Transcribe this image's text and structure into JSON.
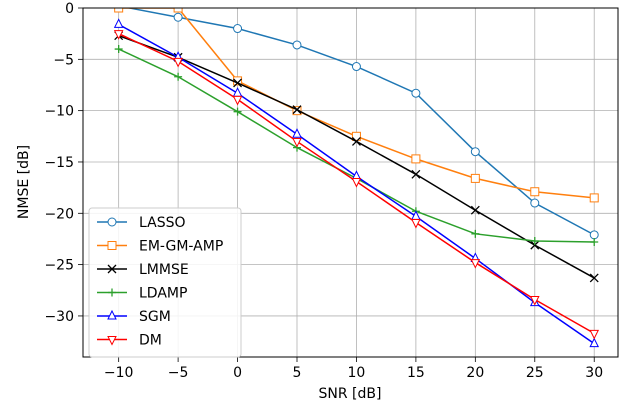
{
  "chart_data": {
    "type": "line",
    "xlabel": "SNR [dB]",
    "ylabel": "NMSE [dB]",
    "xlim": [
      -13,
      32
    ],
    "ylim": [
      -34,
      0
    ],
    "xticks": [
      -10,
      -5,
      0,
      5,
      10,
      15,
      20,
      25,
      30
    ],
    "yticks": [
      0,
      -5,
      -10,
      -15,
      -20,
      -25,
      -30
    ],
    "xtick_labels": [
      "−10",
      "−5",
      "0",
      "5",
      "10",
      "15",
      "20",
      "25",
      "30"
    ],
    "ytick_labels": [
      "0",
      "−5",
      "−10",
      "−15",
      "−20",
      "−25",
      "−30"
    ],
    "grid": true,
    "legend_position": "lower-left",
    "x": [
      -10,
      -5,
      0,
      5,
      10,
      15,
      20,
      25,
      30
    ],
    "series": [
      {
        "name": "LASSO",
        "color": "#1f77b4",
        "marker": "circle",
        "values": [
          0.2,
          -0.9,
          -2.0,
          -3.6,
          -5.7,
          -8.3,
          -14.0,
          -19.0,
          -22.1
        ]
      },
      {
        "name": "EM-GM-AMP",
        "color": "#ff7f0e",
        "marker": "square",
        "values": [
          0.0,
          0.0,
          -7.1,
          -10.0,
          -12.5,
          -14.7,
          -16.6,
          -17.9,
          -18.5
        ]
      },
      {
        "name": "LMMSE",
        "color": "#000000",
        "marker": "x",
        "values": [
          -2.7,
          -4.8,
          -7.3,
          -9.9,
          -13.0,
          -16.2,
          -19.7,
          -23.1,
          -26.3
        ]
      },
      {
        "name": "LDAMP",
        "color": "#2ca02c",
        "marker": "plus",
        "values": [
          -4.0,
          -6.7,
          -10.1,
          -13.6,
          -16.6,
          -19.8,
          -22.0,
          -22.7,
          -22.8
        ]
      },
      {
        "name": "SGM",
        "color": "#0000ff",
        "marker": "triangle-up",
        "values": [
          -1.6,
          -4.8,
          -8.3,
          -12.3,
          -16.4,
          -20.3,
          -24.4,
          -28.7,
          -32.7
        ]
      },
      {
        "name": "DM",
        "color": "#ff0000",
        "marker": "triangle-down",
        "values": [
          -2.5,
          -5.2,
          -8.9,
          -13.0,
          -16.9,
          -20.9,
          -24.8,
          -28.4,
          -31.7
        ]
      }
    ]
  }
}
